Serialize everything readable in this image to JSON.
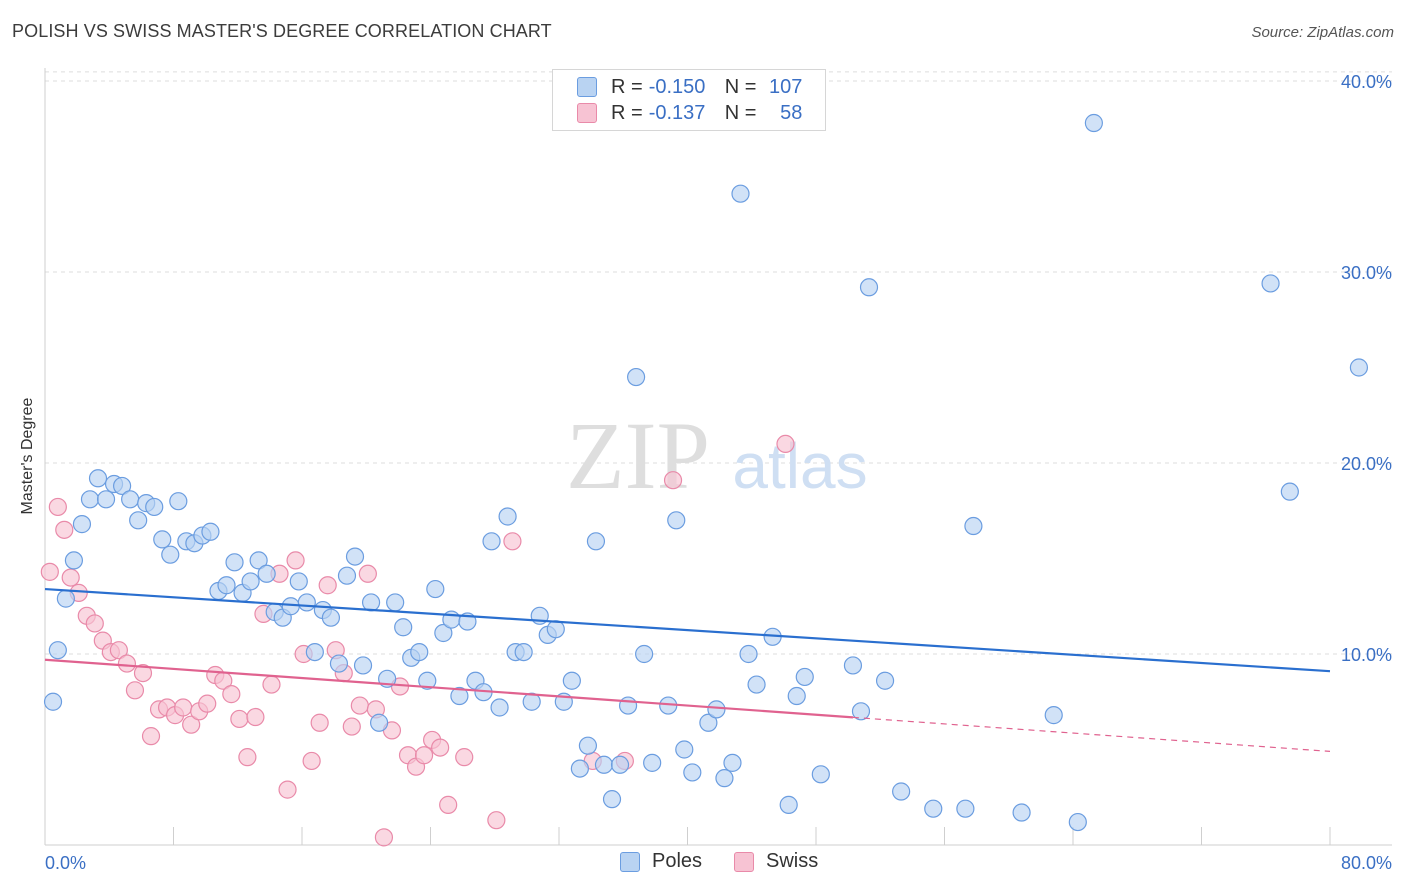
{
  "title": "POLISH VS SWISS MASTER'S DEGREE CORRELATION CHART",
  "source": "Source: ZipAtlas.com",
  "watermark": {
    "zip": "ZIP",
    "atlas": "atlas"
  },
  "colors": {
    "poles_fill": "#b9d3f2",
    "poles_stroke": "#6b9de0",
    "poles_line": "#2a6fcf",
    "swiss_fill": "#f7c3d3",
    "swiss_stroke": "#e98aa9",
    "swiss_line": "#e0628f",
    "axis_label": "#3a6fc4",
    "grid": "#dddddd"
  },
  "legend_top": [
    {
      "r_label": "R =",
      "r_value": "-0.150",
      "n_label": "N =",
      "n_value": "107"
    },
    {
      "r_label": "R =",
      "r_value": "-0.137",
      "n_label": "N =",
      "n_value": "58"
    }
  ],
  "legend_bottom": [
    "Poles",
    "Swiss"
  ],
  "chart_data": {
    "type": "scatter",
    "title": "POLISH VS SWISS MASTER'S DEGREE CORRELATION CHART",
    "xlabel": "",
    "ylabel": "Master's Degree",
    "xlim": [
      0,
      80
    ],
    "ylim": [
      0,
      41
    ],
    "x_tick_labels": [
      "0.0%",
      "80.0%"
    ],
    "y_ticks": [
      10,
      20,
      30,
      40
    ],
    "y_tick_labels": [
      "10.0%",
      "20.0%",
      "30.0%",
      "40.0%"
    ],
    "grid": true,
    "legend_position": "top-center",
    "series": [
      {
        "name": "Poles",
        "r": -0.15,
        "n": 107,
        "trend": {
          "x": [
            0,
            80
          ],
          "y": [
            13.4,
            9.1
          ]
        },
        "points": [
          [
            0.5,
            7.5
          ],
          [
            0.8,
            10.2
          ],
          [
            1.3,
            12.9
          ],
          [
            1.8,
            14.9
          ],
          [
            2.3,
            16.8
          ],
          [
            2.8,
            18.1
          ],
          [
            3.3,
            19.2
          ],
          [
            3.8,
            18.1
          ],
          [
            4.3,
            18.9
          ],
          [
            4.8,
            18.8
          ],
          [
            5.3,
            18.1
          ],
          [
            5.8,
            17.0
          ],
          [
            6.3,
            17.9
          ],
          [
            6.8,
            17.7
          ],
          [
            7.3,
            16.0
          ],
          [
            7.8,
            15.2
          ],
          [
            8.3,
            18.0
          ],
          [
            8.8,
            15.9
          ],
          [
            9.3,
            15.8
          ],
          [
            9.8,
            16.2
          ],
          [
            10.3,
            16.4
          ],
          [
            10.8,
            13.3
          ],
          [
            11.3,
            13.6
          ],
          [
            11.8,
            14.8
          ],
          [
            12.3,
            13.2
          ],
          [
            12.8,
            13.8
          ],
          [
            13.3,
            14.9
          ],
          [
            13.8,
            14.2
          ],
          [
            14.3,
            12.2
          ],
          [
            14.8,
            11.9
          ],
          [
            15.3,
            12.5
          ],
          [
            15.8,
            13.8
          ],
          [
            16.3,
            12.7
          ],
          [
            16.8,
            10.1
          ],
          [
            17.3,
            12.3
          ],
          [
            17.8,
            11.9
          ],
          [
            18.3,
            9.5
          ],
          [
            18.8,
            14.1
          ],
          [
            19.3,
            15.1
          ],
          [
            19.8,
            9.4
          ],
          [
            20.3,
            12.7
          ],
          [
            20.8,
            6.4
          ],
          [
            21.3,
            8.7
          ],
          [
            21.8,
            12.7
          ],
          [
            22.3,
            11.4
          ],
          [
            22.8,
            9.8
          ],
          [
            23.3,
            10.1
          ],
          [
            23.8,
            8.6
          ],
          [
            24.3,
            13.4
          ],
          [
            24.8,
            11.1
          ],
          [
            25.3,
            11.8
          ],
          [
            25.8,
            7.8
          ],
          [
            26.3,
            11.7
          ],
          [
            26.8,
            8.6
          ],
          [
            27.3,
            8.0
          ],
          [
            27.8,
            15.9
          ],
          [
            28.3,
            7.2
          ],
          [
            28.8,
            17.2
          ],
          [
            29.3,
            10.1
          ],
          [
            29.8,
            10.1
          ],
          [
            30.3,
            7.5
          ],
          [
            30.8,
            12.0
          ],
          [
            31.3,
            11.0
          ],
          [
            31.8,
            11.3
          ],
          [
            32.3,
            7.5
          ],
          [
            32.8,
            8.6
          ],
          [
            33.3,
            4.0
          ],
          [
            33.8,
            5.2
          ],
          [
            34.3,
            15.9
          ],
          [
            34.8,
            4.2
          ],
          [
            35.3,
            2.4
          ],
          [
            35.8,
            4.2
          ],
          [
            36.3,
            7.3
          ],
          [
            36.8,
            24.5
          ],
          [
            37.3,
            10.0
          ],
          [
            37.8,
            4.3
          ],
          [
            38.8,
            7.3
          ],
          [
            39.3,
            17.0
          ],
          [
            39.8,
            5.0
          ],
          [
            40.3,
            3.8
          ],
          [
            41.3,
            6.4
          ],
          [
            41.8,
            7.1
          ],
          [
            42.3,
            3.5
          ],
          [
            42.8,
            4.3
          ],
          [
            43.3,
            34.1
          ],
          [
            43.8,
            10.0
          ],
          [
            44.3,
            8.4
          ],
          [
            45.3,
            10.9
          ],
          [
            46.3,
            2.1
          ],
          [
            46.8,
            7.8
          ],
          [
            47.3,
            8.8
          ],
          [
            48.3,
            3.7
          ],
          [
            50.3,
            9.4
          ],
          [
            50.8,
            7.0
          ],
          [
            51.3,
            29.2
          ],
          [
            52.3,
            8.6
          ],
          [
            53.3,
            2.8
          ],
          [
            55.3,
            1.9
          ],
          [
            57.3,
            1.9
          ],
          [
            57.8,
            16.7
          ],
          [
            60.8,
            1.7
          ],
          [
            62.8,
            6.8
          ],
          [
            64.3,
            1.2
          ],
          [
            65.3,
            37.8
          ],
          [
            76.3,
            29.4
          ],
          [
            77.5,
            18.5
          ],
          [
            81.8,
            25.0
          ]
        ]
      },
      {
        "name": "Swiss",
        "r": -0.137,
        "n": 58,
        "trend": {
          "x": [
            0,
            80
          ],
          "y": [
            9.7,
            4.9
          ]
        },
        "points": [
          [
            0.3,
            14.3
          ],
          [
            0.8,
            17.7
          ],
          [
            1.2,
            16.5
          ],
          [
            1.6,
            14.0
          ],
          [
            2.1,
            13.2
          ],
          [
            2.6,
            12.0
          ],
          [
            3.1,
            11.6
          ],
          [
            3.6,
            10.7
          ],
          [
            4.1,
            10.1
          ],
          [
            4.6,
            10.2
          ],
          [
            5.1,
            9.5
          ],
          [
            5.6,
            8.1
          ],
          [
            6.1,
            9.0
          ],
          [
            6.6,
            5.7
          ],
          [
            7.1,
            7.1
          ],
          [
            7.6,
            7.2
          ],
          [
            8.1,
            6.8
          ],
          [
            8.6,
            7.2
          ],
          [
            9.1,
            6.3
          ],
          [
            9.6,
            7.0
          ],
          [
            10.1,
            7.4
          ],
          [
            10.6,
            8.9
          ],
          [
            11.1,
            8.6
          ],
          [
            11.6,
            7.9
          ],
          [
            12.1,
            6.6
          ],
          [
            12.6,
            4.6
          ],
          [
            13.1,
            6.7
          ],
          [
            13.6,
            12.1
          ],
          [
            14.1,
            8.4
          ],
          [
            14.6,
            14.2
          ],
          [
            15.1,
            2.9
          ],
          [
            15.6,
            14.9
          ],
          [
            16.1,
            10.0
          ],
          [
            16.6,
            4.4
          ],
          [
            17.1,
            6.4
          ],
          [
            17.6,
            13.6
          ],
          [
            18.1,
            10.2
          ],
          [
            18.6,
            9.0
          ],
          [
            19.1,
            6.2
          ],
          [
            19.6,
            7.3
          ],
          [
            20.1,
            14.2
          ],
          [
            20.6,
            7.1
          ],
          [
            21.1,
            0.4
          ],
          [
            21.6,
            6.0
          ],
          [
            22.1,
            8.3
          ],
          [
            22.6,
            4.7
          ],
          [
            23.1,
            4.1
          ],
          [
            23.6,
            4.7
          ],
          [
            24.1,
            5.5
          ],
          [
            24.6,
            5.1
          ],
          [
            25.1,
            2.1
          ],
          [
            26.1,
            4.6
          ],
          [
            28.1,
            1.3
          ],
          [
            29.1,
            15.9
          ],
          [
            34.1,
            4.4
          ],
          [
            36.1,
            4.4
          ],
          [
            39.1,
            19.1
          ],
          [
            46.1,
            21.0
          ]
        ]
      }
    ]
  }
}
